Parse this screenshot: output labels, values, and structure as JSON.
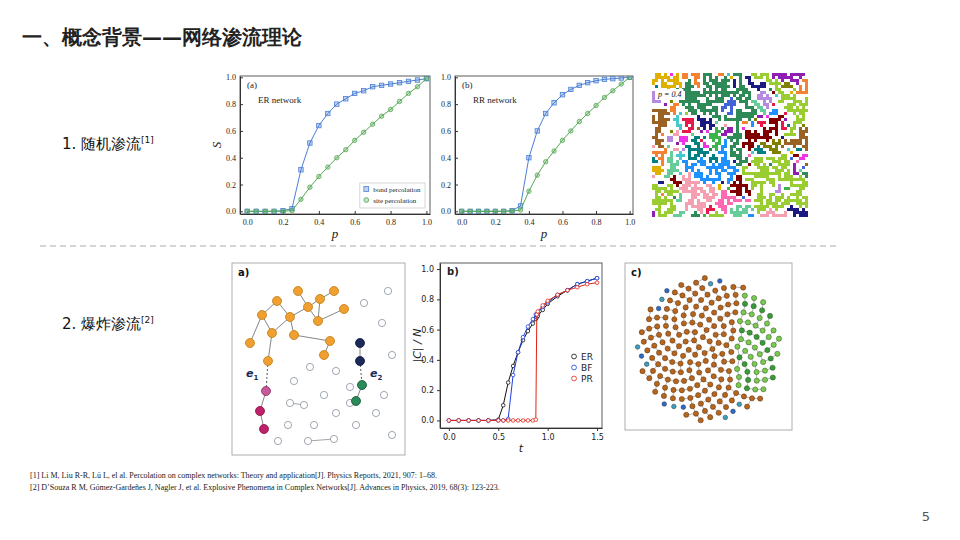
{
  "slide": {
    "title": "一、概念背景——网络渗流理论",
    "sections": [
      {
        "label": "1. 随机渗流",
        "ref": "[1]"
      },
      {
        "label": "2. 爆炸渗流",
        "ref": "[2]"
      }
    ],
    "references": [
      "[1] Li M, Liu R-R, Lü L, el al. Percolation on complex networks: Theory and application[J]. Physics Reports, 2021, 907: 1–68.",
      "[2] D’Souza R M, Gómez-Gardeñes J, Nagler J, et al. Explosive Phenomena in Complex Networks[J]. Advances in Physics, 2019, 68(3): 123-223."
    ],
    "page": 5
  },
  "figures": {
    "lattice": {
      "label": "p = 0.4"
    },
    "network_a": {
      "panel_label": "a)",
      "edge_labels": [
        {
          "letter": "e",
          "index": "1"
        },
        {
          "letter": "e",
          "index": "2"
        }
      ]
    },
    "network_c": {
      "panel_label": "c)"
    }
  },
  "chart_data": [
    {
      "type": "line",
      "panel_label": "(a)",
      "title": "ER network",
      "x_label": "p",
      "y_label": "S",
      "x": [
        0,
        0.05,
        0.1,
        0.15,
        0.2,
        0.25,
        0.3,
        0.35,
        0.4,
        0.45,
        0.5,
        0.55,
        0.6,
        0.65,
        0.7,
        0.75,
        0.8,
        0.85,
        0.9,
        0.95,
        1.0
      ],
      "series": [
        {
          "name": "bond percolation",
          "color": "#4a7fd4",
          "marker": "square",
          "values": [
            0,
            0,
            0,
            0,
            0.005,
            0.02,
            0.31,
            0.51,
            0.64,
            0.73,
            0.8,
            0.84,
            0.88,
            0.9,
            0.93,
            0.94,
            0.95,
            0.96,
            0.97,
            0.98,
            0.99
          ]
        },
        {
          "name": "site percolation",
          "color": "#55a855",
          "marker": "circle",
          "values": [
            0,
            0,
            0,
            0,
            0.001,
            0.005,
            0.09,
            0.18,
            0.26,
            0.33,
            0.4,
            0.46,
            0.53,
            0.59,
            0.65,
            0.71,
            0.76,
            0.82,
            0.88,
            0.93,
            0.99
          ]
        }
      ],
      "xlim": [
        -0.04,
        1.02
      ],
      "ylim": [
        -0.02,
        1.01
      ],
      "xticks": [
        {
          "value": 0,
          "label": "0.0"
        },
        {
          "value": 0.2,
          "label": "0.2"
        },
        {
          "value": 0.4,
          "label": "0.4"
        },
        {
          "value": 0.6,
          "label": "0.6"
        },
        {
          "value": 0.8,
          "label": "0.8"
        },
        {
          "value": 1,
          "label": "1.0"
        }
      ],
      "yticks": [
        {
          "value": 0,
          "label": "0.0"
        },
        {
          "value": 0.2,
          "label": "0.2"
        },
        {
          "value": 0.4,
          "label": "0.4"
        },
        {
          "value": 0.6,
          "label": "0.6"
        },
        {
          "value": 0.8,
          "label": "0.8"
        },
        {
          "value": 1,
          "label": "1.0"
        }
      ],
      "legend": "lower right"
    },
    {
      "type": "line",
      "panel_label": "(b)",
      "title": "RR network",
      "x_label": "p",
      "x": [
        0,
        0.05,
        0.1,
        0.15,
        0.2,
        0.25,
        0.3,
        0.35,
        0.4,
        0.45,
        0.5,
        0.55,
        0.6,
        0.65,
        0.7,
        0.75,
        0.8,
        0.85,
        0.9,
        0.95,
        1.0
      ],
      "series": [
        {
          "color": "#4a7fd4",
          "marker": "square",
          "values": [
            0,
            0,
            0,
            0,
            0,
            0,
            0.005,
            0.04,
            0.4,
            0.6,
            0.73,
            0.81,
            0.87,
            0.91,
            0.94,
            0.96,
            0.975,
            0.985,
            0.99,
            0.995,
            1.0
          ]
        },
        {
          "color": "#55a855",
          "marker": "circle",
          "values": [
            0,
            0,
            0,
            0,
            0,
            0,
            0.002,
            0.01,
            0.15,
            0.27,
            0.37,
            0.45,
            0.53,
            0.6,
            0.67,
            0.73,
            0.79,
            0.85,
            0.9,
            0.95,
            1.0
          ]
        }
      ],
      "xlim": [
        -0.04,
        1.02
      ],
      "ylim": [
        -0.02,
        1.01
      ],
      "xticks": [
        {
          "value": 0,
          "label": "0.0"
        },
        {
          "value": 0.2,
          "label": "0.2"
        },
        {
          "value": 0.4,
          "label": "0.4"
        },
        {
          "value": 0.6,
          "label": "0.6"
        },
        {
          "value": 0.8,
          "label": "0.8"
        },
        {
          "value": 1,
          "label": "1.0"
        }
      ],
      "yticks": [
        {
          "value": 0,
          "label": "0.0"
        },
        {
          "value": 0.2,
          "label": "0.2"
        },
        {
          "value": 0.4,
          "label": "0.4"
        },
        {
          "value": 0.6,
          "label": "0.6"
        },
        {
          "value": 0.8,
          "label": "0.8"
        },
        {
          "value": 1,
          "label": "1.0"
        }
      ]
    },
    {
      "type": "line",
      "panel_label": "b)",
      "x_label": "t",
      "y_label": "|C| / N",
      "x": [
        0,
        0.1,
        0.2,
        0.3,
        0.4,
        0.5,
        0.55,
        0.6,
        0.65,
        0.7,
        0.75,
        0.8,
        0.85,
        0.88,
        0.89,
        0.9,
        0.95,
        1.0,
        1.1,
        1.2,
        1.3,
        1.4,
        1.5
      ],
      "series": [
        {
          "name": "ER",
          "color": "#111111",
          "marker": "circle",
          "values": [
            0,
            0,
            0,
            0,
            0,
            0.005,
            0.1,
            0.25,
            0.36,
            0.45,
            0.53,
            0.59,
            0.64,
            0.67,
            0.68,
            0.69,
            0.73,
            0.77,
            0.82,
            0.86,
            0.9,
            0.92,
            0.94
          ]
        },
        {
          "name": "BF",
          "color": "#1c3fe0",
          "marker": "circle",
          "values": [
            0,
            0,
            0,
            0,
            0,
            0,
            0,
            0.01,
            0.3,
            0.45,
            0.55,
            0.62,
            0.67,
            0.7,
            0.7,
            0.71,
            0.75,
            0.78,
            0.83,
            0.86,
            0.9,
            0.92,
            0.94
          ]
        },
        {
          "name": "PR",
          "color": "#e02418",
          "marker": "circle",
          "values": [
            0,
            0,
            0,
            0,
            0,
            0,
            0,
            0,
            0,
            0,
            0,
            0,
            0,
            0.005,
            0.7,
            0.72,
            0.76,
            0.79,
            0.83,
            0.86,
            0.88,
            0.9,
            0.91
          ]
        }
      ],
      "xlim": [
        -0.09,
        1.55
      ],
      "ylim": [
        -0.05,
        1.04
      ],
      "xticks": [
        {
          "value": 0,
          "label": "0.0"
        },
        {
          "value": 0.5,
          "label": "0.5"
        },
        {
          "value": 1,
          "label": "1.0"
        },
        {
          "value": 1.5,
          "label": "1.5"
        }
      ],
      "yticks": [
        {
          "value": 0,
          "label": "0.0"
        },
        {
          "value": 0.2,
          "label": "0.2"
        },
        {
          "value": 0.4,
          "label": "0.4"
        },
        {
          "value": 0.6,
          "label": "0.6"
        },
        {
          "value": 0.8,
          "label": "0.8"
        },
        {
          "value": 1,
          "label": "1.0"
        }
      ],
      "legend": "center right"
    }
  ]
}
